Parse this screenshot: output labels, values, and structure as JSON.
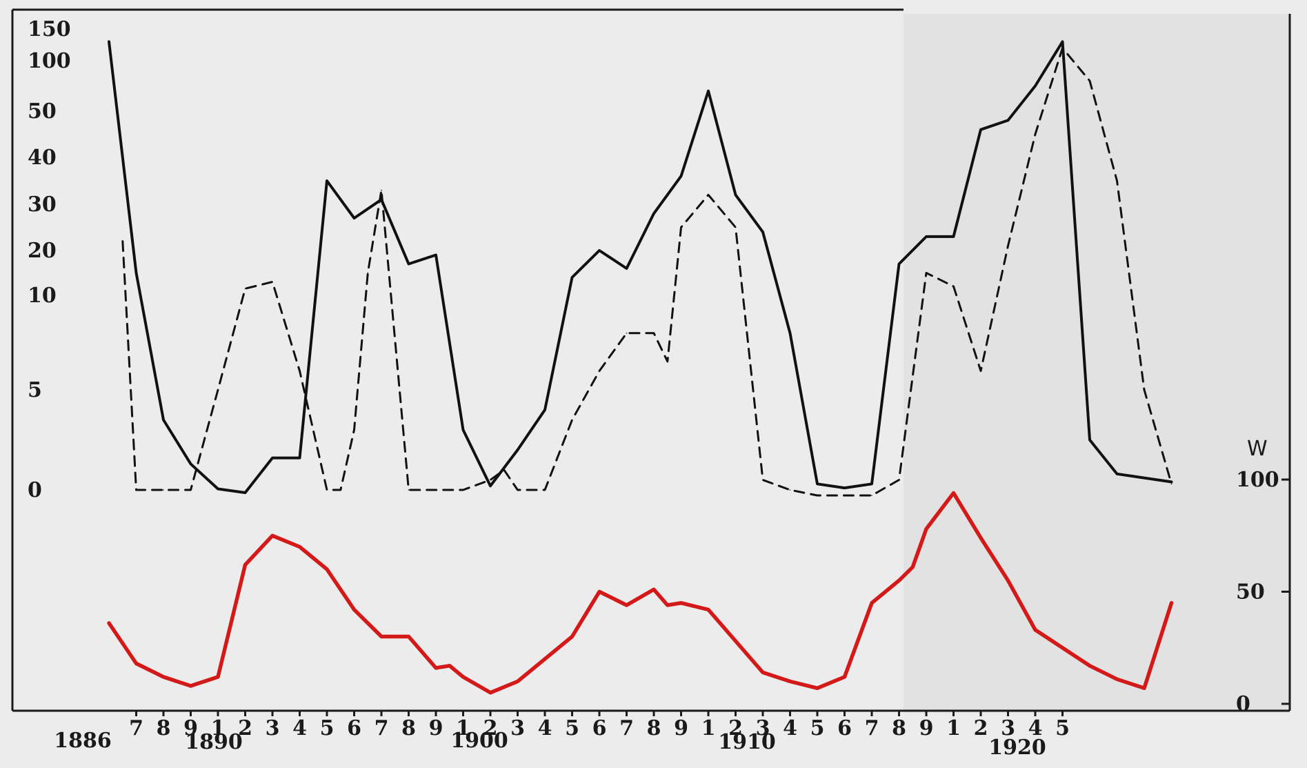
{
  "chart_data": {
    "type": "line",
    "right_axis_label": "W",
    "left_axis_ticks": [
      "150",
      "100",
      "50",
      "40",
      "30",
      "20",
      "10",
      "5",
      "0"
    ],
    "right_axis_ticks": [
      "100",
      "50",
      "0"
    ],
    "x_ticks": [
      "7",
      "8",
      "9",
      "1",
      "2",
      "3",
      "4",
      "5",
      "6",
      "7",
      "8",
      "9",
      "1",
      "2",
      "3",
      "4",
      "5",
      "6",
      "7",
      "8",
      "9",
      "1",
      "2",
      "3",
      "4",
      "5",
      "6",
      "7",
      "8",
      "9",
      "1",
      "2",
      "3",
      "4",
      "5"
    ],
    "year_labels": [
      "1886",
      "1890",
      "1900",
      "1910",
      "1920"
    ],
    "grid": false,
    "legend": "none",
    "colors": {
      "solid": "#111111",
      "dashed": "#111111",
      "red": "#d41919"
    },
    "series": [
      {
        "style": "solid",
        "x": [
          1886.0,
          1887.0,
          1888.0,
          1889.0,
          1890.0,
          1891.0,
          1892.0,
          1893.0,
          1894.0,
          1895.0,
          1896.0,
          1897.0,
          1898.0,
          1899.0,
          1900.0,
          1901.0,
          1902.0,
          1903.0,
          1904.0,
          1905.0,
          1906.0,
          1907.0,
          1908.0,
          1909.0,
          1910.0,
          1911.0,
          1912.0,
          1913.0,
          1914.0,
          1915.0,
          1916.0,
          1917.0,
          1918.0,
          1919.0,
          1920.0,
          1921.0,
          1922.0,
          1923.0,
          1924.0,
          1925.0
        ],
        "y": [
          130,
          15,
          3.5,
          1.3,
          0.05,
          -0.05,
          1.6,
          1.6,
          35,
          27,
          31,
          17,
          19,
          3,
          0.2,
          2,
          4,
          14,
          20,
          16,
          28,
          36,
          70,
          32,
          24,
          8,
          0.3,
          0.1,
          0.3,
          17,
          23,
          23,
          46,
          48,
          75,
          130,
          2.5,
          0.8,
          0.6,
          0.4
        ]
      },
      {
        "style": "dashed",
        "x": [
          1886.5,
          1887.0,
          1888.0,
          1889.0,
          1890.0,
          1891.0,
          1892.0,
          1893.0,
          1894.0,
          1894.5,
          1895.0,
          1895.5,
          1896.0,
          1897.0,
          1898.0,
          1899.0,
          1900.0,
          1900.5,
          1901.0,
          1901.5,
          1902.0,
          1903.0,
          1904.0,
          1905.0,
          1906.0,
          1906.5,
          1907.0,
          1908.0,
          1909.0,
          1910.0,
          1911.0,
          1912.0,
          1913.0,
          1914.0,
          1915.0,
          1916.0,
          1917.0,
          1918.0,
          1919.0,
          1920.0,
          1921.0,
          1922.0,
          1923.0,
          1924.0,
          1925.0
        ],
        "y": [
          22,
          0,
          0,
          0,
          5,
          11.5,
          13,
          6,
          0,
          0,
          3,
          15,
          33,
          0,
          0,
          0,
          0.5,
          1,
          0,
          0,
          0,
          3.5,
          6,
          8,
          8,
          6.5,
          25,
          32,
          25,
          0.5,
          0,
          -0.1,
          -0.1,
          -0.1,
          0.5,
          15,
          12,
          6,
          21,
          45,
          120,
          80,
          35,
          5,
          0.3
        ]
      },
      {
        "style": "red",
        "axis": "W",
        "x": [
          1886.0,
          1887.0,
          1888.0,
          1889.0,
          1890.0,
          1891.0,
          1892.0,
          1893.0,
          1894.0,
          1895.0,
          1896.0,
          1897.0,
          1898.0,
          1898.5,
          1899.0,
          1900.0,
          1901.0,
          1902.0,
          1903.0,
          1904.0,
          1905.0,
          1906.0,
          1906.5,
          1907.0,
          1908.0,
          1909.0,
          1910.0,
          1911.0,
          1912.0,
          1913.0,
          1914.0,
          1915.0,
          1915.5,
          1916.0,
          1917.0,
          1918.0,
          1919.0,
          1920.0,
          1921.0,
          1922.0,
          1923.0,
          1924.0,
          1925.0
        ],
        "y": [
          36,
          18,
          12,
          8,
          12,
          62,
          75,
          70,
          60,
          42,
          30,
          30,
          16,
          17,
          12,
          5,
          10,
          20,
          30,
          50,
          44,
          51,
          44,
          45,
          42,
          28,
          14,
          10,
          7,
          12,
          45,
          55,
          61,
          78,
          94,
          74,
          55,
          33,
          25,
          17,
          11,
          7,
          45
        ]
      }
    ]
  }
}
